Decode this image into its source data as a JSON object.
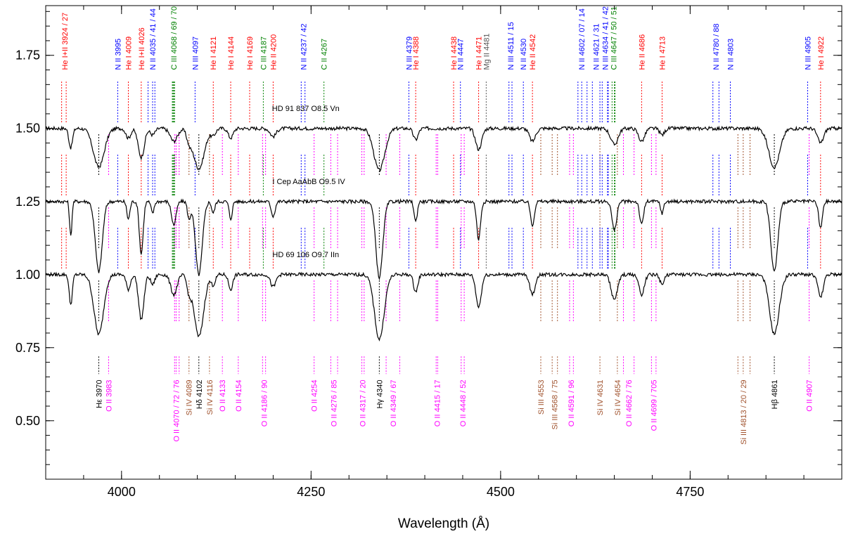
{
  "chart_data": {
    "type": "line",
    "xlabel": "Wavelength (Å)",
    "ylabel": "",
    "xlim": [
      3900,
      4950
    ],
    "ylim": [
      0.3,
      1.92
    ],
    "x_ticks": [
      {
        "value": 4000,
        "label": "4000"
      },
      {
        "value": 4250,
        "label": "4250"
      },
      {
        "value": 4500,
        "label": "4500"
      },
      {
        "value": 4750,
        "label": "4750"
      }
    ],
    "y_ticks": [
      {
        "value": 0.5,
        "label": "0.50"
      },
      {
        "value": 0.75,
        "label": "0.75"
      },
      {
        "value": 1.0,
        "label": "1.00"
      },
      {
        "value": 1.25,
        "label": "1.25"
      },
      {
        "value": 1.5,
        "label": "1.50"
      },
      {
        "value": 1.75,
        "label": "1.75"
      }
    ],
    "colors": {
      "N": "#0000ff",
      "He": "#ff0000",
      "C": "#008000",
      "O": "#ff00ff",
      "Si": "#a0522d",
      "Mg": "#555555",
      "H": "#000000",
      "spectrum": "#000000"
    },
    "series": [
      {
        "name": "HD 91 837   O8.5 Vn",
        "offset": 1.5,
        "label_x": 4243,
        "label_y": 1.56,
        "depth": 0.55,
        "width": 1.6
      },
      {
        "name": "I Cep AaAbB   O9.5 IV",
        "offset": 1.25,
        "label_x": 4247,
        "label_y": 1.31,
        "depth": 1.0,
        "width": 1.0
      },
      {
        "name": "HD 69 106   O9.7 IIn",
        "offset": 1.0,
        "label_x": 4243,
        "label_y": 1.06,
        "depth": 0.85,
        "width": 1.4
      }
    ],
    "top_labels": [
      {
        "text": "He I+II 3924 / 27",
        "element": "He",
        "x": 3925
      },
      {
        "text": "N II 3995",
        "element": "N",
        "x": 3995
      },
      {
        "text": "He I 4009",
        "element": "He",
        "x": 4009
      },
      {
        "text": "He I+II 4026",
        "element": "He",
        "x": 4026
      },
      {
        "text": "N II 4035 / 41 / 44",
        "element": "N",
        "x": 4041
      },
      {
        "text": "C III 4068 / 69 / 70",
        "element": "C",
        "x": 4069
      },
      {
        "text": "N III 4097",
        "element": "N",
        "x": 4097
      },
      {
        "text": "He I 4121",
        "element": "He",
        "x": 4121
      },
      {
        "text": "He I 4144",
        "element": "He",
        "x": 4144
      },
      {
        "text": "He I 4169",
        "element": "He",
        "x": 4169
      },
      {
        "text": "C III 4187",
        "element": "C",
        "x": 4187
      },
      {
        "text": "He II 4200",
        "element": "He",
        "x": 4200
      },
      {
        "text": "N II 4237 / 42",
        "element": "N",
        "x": 4240
      },
      {
        "text": "C II 4267",
        "element": "C",
        "x": 4267
      },
      {
        "text": "N III 4379",
        "element": "N",
        "x": 4379
      },
      {
        "text": "He I 4388",
        "element": "He",
        "x": 4388
      },
      {
        "text": "He I 4438",
        "element": "He",
        "x": 4438
      },
      {
        "text": "N II 4447",
        "element": "N",
        "x": 4447
      },
      {
        "text": "He I 4471",
        "element": "He",
        "x": 4471
      },
      {
        "text": "Mg II 4481",
        "element": "Mg",
        "x": 4481
      },
      {
        "text": "N III 4511 / 15",
        "element": "N",
        "x": 4513
      },
      {
        "text": "N II 4530",
        "element": "N",
        "x": 4530
      },
      {
        "text": "He II 4542",
        "element": "He",
        "x": 4542
      },
      {
        "text": "N II 4602 / 07 / 14",
        "element": "N",
        "x": 4607
      },
      {
        "text": "N II 4621 / 31",
        "element": "N",
        "x": 4626
      },
      {
        "text": "N III 4634 / 41 / 42",
        "element": "N",
        "x": 4638
      },
      {
        "text": "C III 4647 / 50 / 51",
        "element": "C",
        "x": 4649
      },
      {
        "text": "He II 4686",
        "element": "He",
        "x": 4686
      },
      {
        "text": "He I 4713",
        "element": "He",
        "x": 4713
      },
      {
        "text": "N II 4780 / 88",
        "element": "N",
        "x": 4784
      },
      {
        "text": "N II 4803",
        "element": "N",
        "x": 4803
      },
      {
        "text": "N III 4905",
        "element": "N",
        "x": 4905
      },
      {
        "text": "He I 4922",
        "element": "He",
        "x": 4922
      }
    ],
    "bottom_labels": [
      {
        "text": "Hε 3970",
        "element": "H",
        "x": 3970
      },
      {
        "text": "O II 3983",
        "element": "O",
        "x": 3983
      },
      {
        "text": "O II 4070 / 72 / 76",
        "element": "O",
        "x": 4072
      },
      {
        "text": "Si IV 4089",
        "element": "Si",
        "x": 4089
      },
      {
        "text": "Hδ 4102",
        "element": "H",
        "x": 4102
      },
      {
        "text": "Si IV 4116",
        "element": "Si",
        "x": 4116
      },
      {
        "text": "O II 4133",
        "element": "O",
        "x": 4133
      },
      {
        "text": "O II 4154",
        "element": "O",
        "x": 4154
      },
      {
        "text": "O II 4186 / 90",
        "element": "O",
        "x": 4188
      },
      {
        "text": "O II 4254",
        "element": "O",
        "x": 4254
      },
      {
        "text": "O II 4276 / 85",
        "element": "O",
        "x": 4280
      },
      {
        "text": "O II 4317 / 20",
        "element": "O",
        "x": 4318
      },
      {
        "text": "Hγ 4340",
        "element": "H",
        "x": 4340
      },
      {
        "text": "O II 4349 / 67",
        "element": "O",
        "x": 4358
      },
      {
        "text": "O II 4415 / 17",
        "element": "O",
        "x": 4416
      },
      {
        "text": "O II 4448 / 52",
        "element": "O",
        "x": 4450
      },
      {
        "text": "Si III 4553",
        "element": "Si",
        "x": 4553
      },
      {
        "text": "Si III 4568 / 75",
        "element": "Si",
        "x": 4571
      },
      {
        "text": "O II 4591 / 96",
        "element": "O",
        "x": 4593
      },
      {
        "text": "Si IV 4631",
        "element": "Si",
        "x": 4631
      },
      {
        "text": "Si IV 4654",
        "element": "Si",
        "x": 4654
      },
      {
        "text": "O II 4662 / 76",
        "element": "O",
        "x": 4669
      },
      {
        "text": "O II 4699 / 705",
        "element": "O",
        "x": 4702
      },
      {
        "text": "Si III 4813 / 20 / 29",
        "element": "Si",
        "x": 4820
      },
      {
        "text": "Hβ 4861",
        "element": "H",
        "x": 4861
      },
      {
        "text": "O II 4907",
        "element": "O",
        "x": 4907
      }
    ],
    "top_lines": [
      {
        "element": "He",
        "wl": [
          3921,
          3927
        ]
      },
      {
        "element": "N",
        "wl": [
          3995
        ]
      },
      {
        "element": "He",
        "wl": [
          4009
        ]
      },
      {
        "element": "He",
        "wl": [
          4026
        ]
      },
      {
        "element": "N",
        "wl": [
          4035,
          4041,
          4044
        ]
      },
      {
        "element": "C",
        "wl": [
          4067,
          4068,
          4069,
          4070
        ]
      },
      {
        "element": "N",
        "wl": [
          4097
        ]
      },
      {
        "element": "He",
        "wl": [
          4121
        ]
      },
      {
        "element": "He",
        "wl": [
          4144
        ]
      },
      {
        "element": "He",
        "wl": [
          4169
        ]
      },
      {
        "element": "C",
        "wl": [
          4187
        ]
      },
      {
        "element": "He",
        "wl": [
          4200
        ]
      },
      {
        "element": "N",
        "wl": [
          4237,
          4242
        ]
      },
      {
        "element": "C",
        "wl": [
          4267
        ]
      },
      {
        "element": "N",
        "wl": [
          4379
        ]
      },
      {
        "element": "He",
        "wl": [
          4388
        ]
      },
      {
        "element": "He",
        "wl": [
          4438
        ]
      },
      {
        "element": "N",
        "wl": [
          4447
        ]
      },
      {
        "element": "He",
        "wl": [
          4471
        ]
      },
      {
        "element": "Mg",
        "wl": [
          4481
        ]
      },
      {
        "element": "N",
        "wl": [
          4511,
          4515
        ]
      },
      {
        "element": "N",
        "wl": [
          4530
        ]
      },
      {
        "element": "He",
        "wl": [
          4542
        ]
      },
      {
        "element": "N",
        "wl": [
          4602,
          4607,
          4614
        ]
      },
      {
        "element": "N",
        "wl": [
          4621,
          4631
        ]
      },
      {
        "element": "N",
        "wl": [
          4634,
          4641,
          4642
        ]
      },
      {
        "element": "C",
        "wl": [
          4647,
          4650,
          4651
        ]
      },
      {
        "element": "He",
        "wl": [
          4686
        ]
      },
      {
        "element": "He",
        "wl": [
          4713
        ]
      },
      {
        "element": "N",
        "wl": [
          4780,
          4788
        ]
      },
      {
        "element": "N",
        "wl": [
          4803
        ]
      },
      {
        "element": "N",
        "wl": [
          4905
        ]
      },
      {
        "element": "He",
        "wl": [
          4922
        ]
      }
    ],
    "bottom_lines": [
      {
        "element": "H",
        "wl": [
          3970
        ]
      },
      {
        "element": "O",
        "wl": [
          3983
        ]
      },
      {
        "element": "O",
        "wl": [
          4070,
          4072,
          4076
        ]
      },
      {
        "element": "Si",
        "wl": [
          4089
        ]
      },
      {
        "element": "H",
        "wl": [
          4102
        ]
      },
      {
        "element": "Si",
        "wl": [
          4116
        ]
      },
      {
        "element": "O",
        "wl": [
          4133
        ]
      },
      {
        "element": "O",
        "wl": [
          4154
        ]
      },
      {
        "element": "O",
        "wl": [
          4186,
          4190
        ]
      },
      {
        "element": "O",
        "wl": [
          4254
        ]
      },
      {
        "element": "O",
        "wl": [
          4276,
          4285
        ]
      },
      {
        "element": "O",
        "wl": [
          4317,
          4320
        ]
      },
      {
        "element": "H",
        "wl": [
          4340
        ]
      },
      {
        "element": "O",
        "wl": [
          4349,
          4367
        ]
      },
      {
        "element": "O",
        "wl": [
          4415,
          4417
        ]
      },
      {
        "element": "O",
        "wl": [
          4448,
          4452
        ]
      },
      {
        "element": "Si",
        "wl": [
          4553
        ]
      },
      {
        "element": "Si",
        "wl": [
          4568,
          4575
        ]
      },
      {
        "element": "O",
        "wl": [
          4591,
          4596
        ]
      },
      {
        "element": "Si",
        "wl": [
          4631
        ]
      },
      {
        "element": "Si",
        "wl": [
          4654
        ]
      },
      {
        "element": "O",
        "wl": [
          4662,
          4676
        ]
      },
      {
        "element": "O",
        "wl": [
          4699,
          4705
        ]
      },
      {
        "element": "Si",
        "wl": [
          4813,
          4820,
          4829
        ]
      },
      {
        "element": "H",
        "wl": [
          4861
        ]
      },
      {
        "element": "O",
        "wl": [
          4907
        ]
      }
    ],
    "absorption_lines": [
      {
        "wl": 3933,
        "d": 0.12,
        "w": 1.5
      },
      {
        "wl": 3970,
        "d": 0.24,
        "w": 4.5
      },
      {
        "wl": 4009,
        "d": 0.06,
        "w": 2.0
      },
      {
        "wl": 4026,
        "d": 0.18,
        "w": 2.5
      },
      {
        "wl": 4041,
        "d": 0.04,
        "w": 2.0
      },
      {
        "wl": 4069,
        "d": 0.08,
        "w": 3.0
      },
      {
        "wl": 4089,
        "d": 0.06,
        "w": 2.0
      },
      {
        "wl": 4102,
        "d": 0.25,
        "w": 4.5
      },
      {
        "wl": 4121,
        "d": 0.04,
        "w": 2.0
      },
      {
        "wl": 4144,
        "d": 0.06,
        "w": 2.0
      },
      {
        "wl": 4200,
        "d": 0.05,
        "w": 2.5
      },
      {
        "wl": 4340,
        "d": 0.26,
        "w": 4.5
      },
      {
        "wl": 4388,
        "d": 0.07,
        "w": 2.0
      },
      {
        "wl": 4471,
        "d": 0.13,
        "w": 2.5
      },
      {
        "wl": 4542,
        "d": 0.08,
        "w": 2.5
      },
      {
        "wl": 4650,
        "d": 0.1,
        "w": 3.0
      },
      {
        "wl": 4686,
        "d": 0.08,
        "w": 2.5
      },
      {
        "wl": 4713,
        "d": 0.04,
        "w": 2.0
      },
      {
        "wl": 4861,
        "d": 0.24,
        "w": 4.5
      },
      {
        "wl": 4922,
        "d": 0.09,
        "w": 2.5
      }
    ]
  }
}
